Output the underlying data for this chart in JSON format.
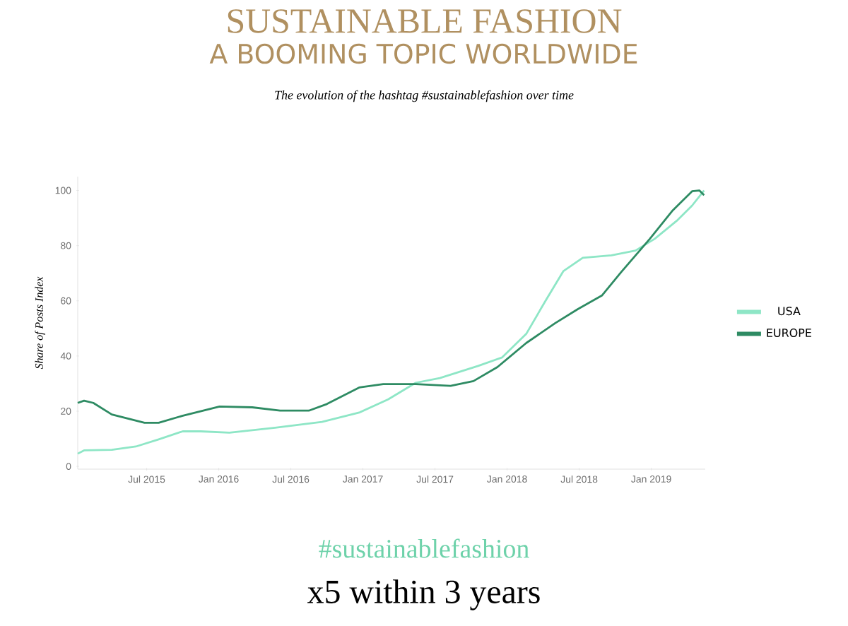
{
  "chart_data": {
    "type": "line",
    "title": "SUSTAINABLE FASHION",
    "subtitle": "A BOOMING TOPIC WORLDWIDE",
    "annotations": [
      "The evolution of the hashtag #sustainablefashion over time",
      "#sustainablefashion",
      "x5 within 3 years"
    ],
    "ylabel": "Share of Posts Index",
    "xlim": [
      "2015-01-09",
      "2019-05-16"
    ],
    "ylim": [
      -1,
      105
    ],
    "xticks": [
      {
        "value": "2015-07-01",
        "label": "Jul 2015"
      },
      {
        "value": "2016-01-01",
        "label": "Jan 2016"
      },
      {
        "value": "2016-07-01",
        "label": "Jul 2016"
      },
      {
        "value": "2017-01-01",
        "label": "Jan 2017"
      },
      {
        "value": "2017-07-01",
        "label": "Jul 2017"
      },
      {
        "value": "2018-01-01",
        "label": "Jan 2018"
      },
      {
        "value": "2018-07-01",
        "label": "Jul 2018"
      },
      {
        "value": "2019-01-01",
        "label": "Jan 2019"
      }
    ],
    "yticks": [
      0,
      20,
      40,
      60,
      80,
      100
    ],
    "grid": false,
    "legend": "right",
    "series": [
      {
        "name": "USA",
        "color": "#8ee6c6",
        "x": [
          "2015-01-09",
          "2015-01-25",
          "2015-04-04",
          "2015-06-04",
          "2015-08-01",
          "2015-10-01",
          "2015-11-16",
          "2016-01-28",
          "2016-05-22",
          "2016-09-19",
          "2016-12-22",
          "2017-03-04",
          "2017-05-13",
          "2017-07-13",
          "2017-10-19",
          "2017-12-19",
          "2018-02-19",
          "2018-04-07",
          "2018-05-22",
          "2018-07-10",
          "2018-09-22",
          "2018-11-22",
          "2019-01-10",
          "2019-03-07",
          "2019-04-13",
          "2019-05-13"
        ],
        "values": [
          4.6,
          5.8,
          6,
          7.2,
          9.8,
          12.7,
          12.7,
          12.2,
          14,
          16.1,
          19.5,
          24.3,
          30.3,
          32,
          36.4,
          39.5,
          48,
          60,
          70.8,
          75.6,
          76.5,
          78.2,
          82.5,
          89.3,
          94.5,
          100
        ]
      },
      {
        "name": "EUROPE",
        "color": "#2e8b63",
        "x": [
          "2015-01-09",
          "2015-01-25",
          "2015-02-18",
          "2015-04-04",
          "2015-06-26",
          "2015-08-01",
          "2015-09-30",
          "2016-01-03",
          "2016-03-25",
          "2016-06-04",
          "2016-08-16",
          "2016-10-01",
          "2016-12-22",
          "2017-02-22",
          "2017-05-13",
          "2017-08-10",
          "2017-10-07",
          "2017-12-07",
          "2018-02-19",
          "2018-05-01",
          "2018-06-28",
          "2018-08-28",
          "2018-10-16",
          "2018-12-28",
          "2019-02-25",
          "2019-04-13",
          "2019-05-01",
          "2019-05-13"
        ],
        "values": [
          23,
          23.8,
          23,
          18.8,
          15.8,
          15.8,
          18.3,
          21.7,
          21.4,
          20.2,
          20.2,
          22.6,
          28.6,
          29.8,
          29.8,
          29.2,
          30.9,
          36,
          44.7,
          51.9,
          57,
          61.9,
          70.4,
          82.5,
          92.8,
          99.7,
          100,
          98.3
        ]
      }
    ]
  }
}
